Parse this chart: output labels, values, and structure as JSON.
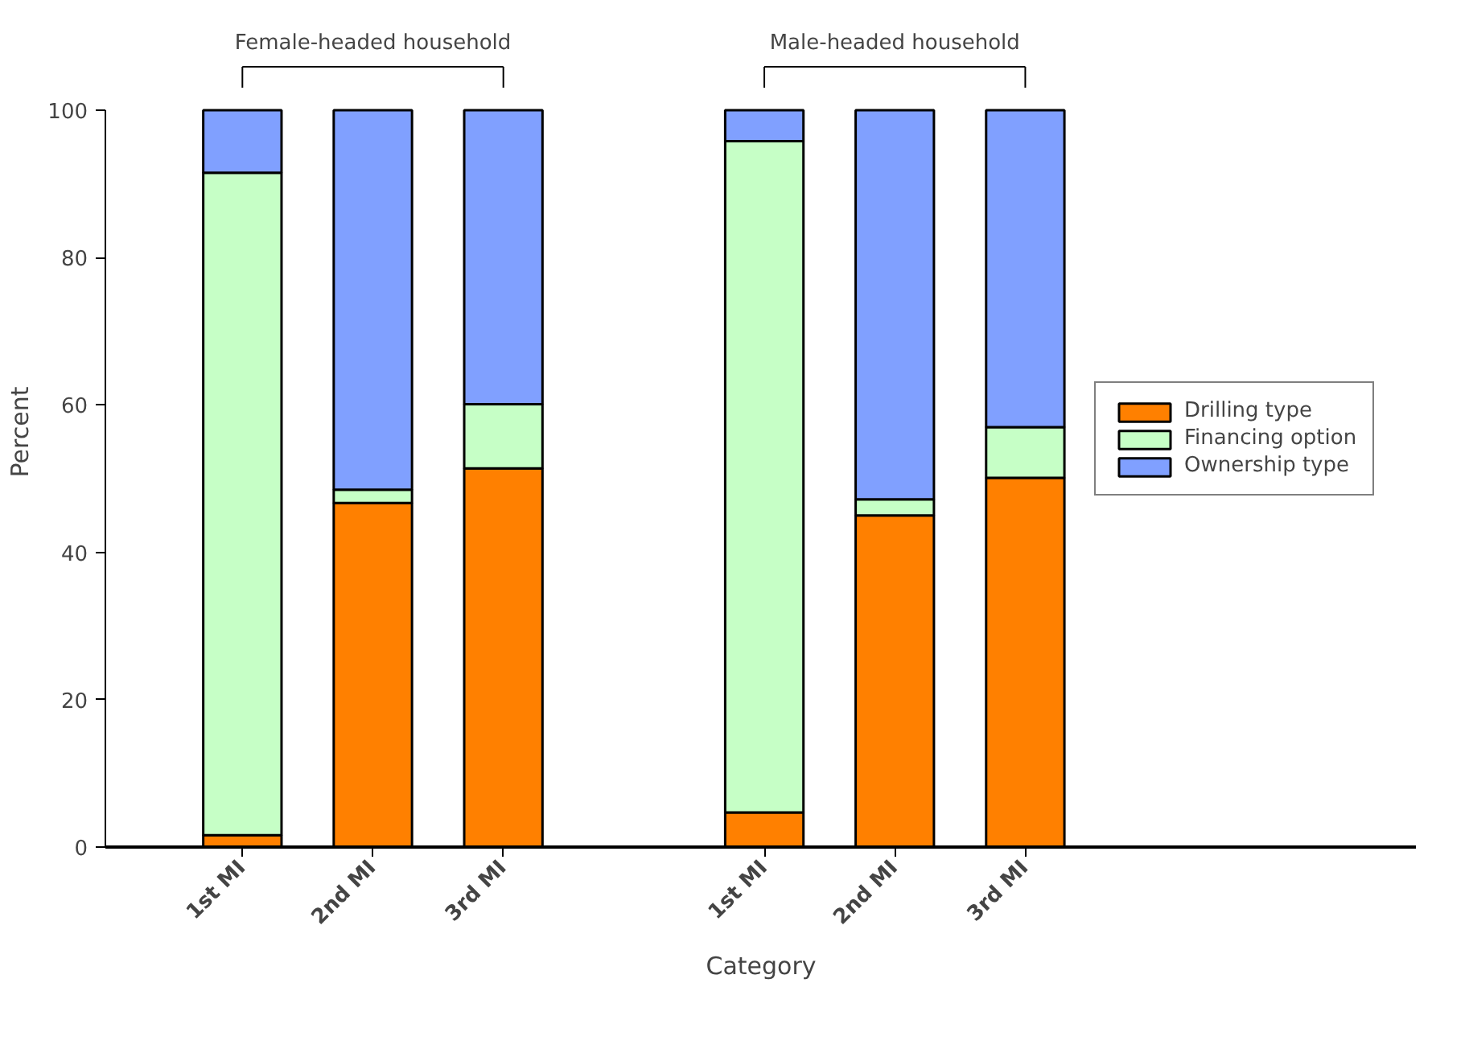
{
  "chart_data": {
    "type": "bar",
    "stacked": true,
    "xlabel": "Category",
    "ylabel": "Percent",
    "categories": [
      "1st MI",
      "2nd MI",
      "3rd MI",
      "1st MI",
      "2nd MI",
      "3rd MI"
    ],
    "annotations": [
      "Female-headed household",
      "Male-headed household"
    ],
    "series": [
      {
        "name": "Drilling type",
        "color": "#ff8000",
        "values": [
          1.6,
          46.7,
          51.4,
          4.7,
          45.0,
          50.1
        ]
      },
      {
        "name": "Financing option",
        "color": "#c6ffc6",
        "values": [
          89.9,
          1.8,
          8.7,
          91.1,
          2.2,
          6.9
        ]
      },
      {
        "name": "Ownership type",
        "color": "#80a0ff",
        "values": [
          8.5,
          51.5,
          39.9,
          4.2,
          52.8,
          43.0
        ]
      }
    ],
    "ylim": [
      0,
      100
    ],
    "yticks": [
      0,
      20,
      40,
      60,
      80,
      100
    ],
    "grid": false,
    "legend": "right"
  }
}
